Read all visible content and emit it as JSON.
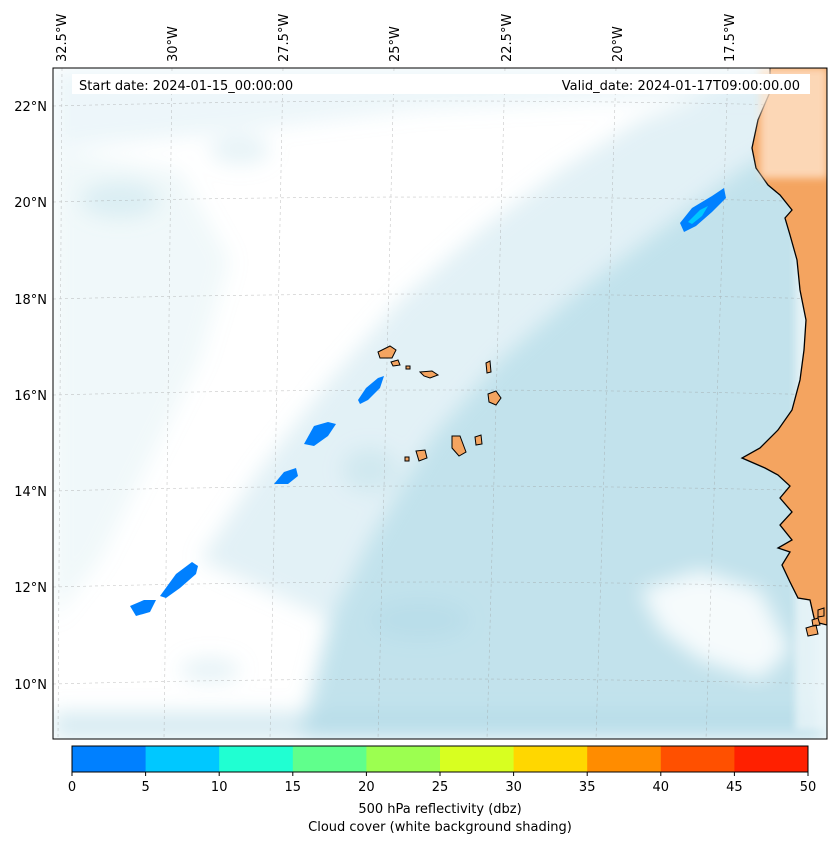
{
  "header": {
    "start_date": "Start date: 2024-01-15_00:00:00",
    "valid_date": "Valid_date: 2024-01-17T09:00:00.00"
  },
  "map": {
    "lon_labels": [
      "32.5°W",
      "30°W",
      "27.5°W",
      "25°W",
      "22.5°W",
      "20°W",
      "17.5°W"
    ],
    "lat_labels": [
      "22°N",
      "20°N",
      "18°N",
      "16°N",
      "14°N",
      "12°N",
      "10°N"
    ],
    "land_color": "#f4a460",
    "coast_color": "#000000",
    "cloud_color": "#add8e6",
    "grid": true
  },
  "colorbar": {
    "ticks": [
      "0",
      "5",
      "10",
      "15",
      "20",
      "25",
      "30",
      "35",
      "40",
      "45",
      "50"
    ],
    "colors": [
      "#0080ff",
      "#00c8ff",
      "#20ffd2",
      "#60ff8c",
      "#9cff50",
      "#d8ff20",
      "#ffd700",
      "#ff8c00",
      "#ff5000",
      "#ff2000"
    ],
    "label_line1": "500 hPa reflectivity (dbz)",
    "label_line2": "Cloud cover (white background shading)"
  }
}
